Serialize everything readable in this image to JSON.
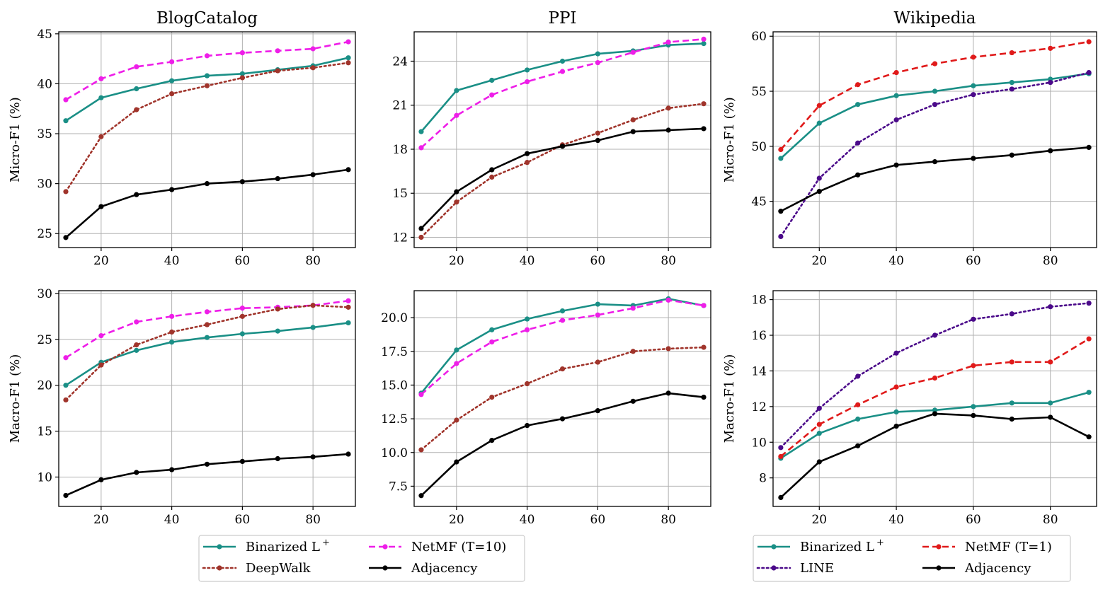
{
  "colors": {
    "binarized": "#1a8f86",
    "deepwalk": "#a0342b",
    "netmf10": "#ee1ee8",
    "netmf1": "#e01a1a",
    "line": "#4b0a8a",
    "adjacency": "#000000"
  },
  "legends": [
    {
      "panel": "left",
      "entries": [
        {
          "label_main": "Binarized L",
          "label_sup": "+",
          "color_key": "binarized",
          "dash": "solid"
        },
        {
          "label_main": "NetMF (T=10)",
          "label_sup": "",
          "color_key": "netmf10",
          "dash": "dashed"
        },
        {
          "label_main": "DeepWalk",
          "label_sup": "",
          "color_key": "deepwalk",
          "dash": "dotted"
        },
        {
          "label_main": "Adjacency",
          "label_sup": "",
          "color_key": "adjacency",
          "dash": "solid"
        }
      ]
    },
    {
      "panel": "right",
      "entries": [
        {
          "label_main": "Binarized L",
          "label_sup": "+",
          "color_key": "binarized",
          "dash": "solid"
        },
        {
          "label_main": "NetMF (T=1)",
          "label_sup": "",
          "color_key": "netmf1",
          "dash": "dashed"
        },
        {
          "label_main": "LINE",
          "label_sup": "",
          "color_key": "line",
          "dash": "dotted"
        },
        {
          "label_main": "Adjacency",
          "label_sup": "",
          "color_key": "adjacency",
          "dash": "solid"
        }
      ]
    }
  ],
  "chart_data": [
    {
      "type": "line",
      "title": "BlogCatalog",
      "xlabel": "",
      "ylabel": "Micro-F1 (%)",
      "xlim": [
        8,
        92
      ],
      "ylim": [
        23.6,
        45.2
      ],
      "xticks": [
        20,
        40,
        60,
        80
      ],
      "yticks": [
        25,
        30,
        35,
        40,
        45
      ],
      "x": [
        10,
        20,
        30,
        40,
        50,
        60,
        70,
        80,
        90
      ],
      "series": [
        {
          "name": "Binarized L+",
          "color_key": "binarized",
          "dash": "solid",
          "values": [
            36.3,
            38.6,
            39.5,
            40.3,
            40.8,
            41.0,
            41.4,
            41.8,
            42.6
          ]
        },
        {
          "name": "NetMF (T=10)",
          "color_key": "netmf10",
          "dash": "dashed",
          "values": [
            38.4,
            40.5,
            41.7,
            42.2,
            42.8,
            43.1,
            43.3,
            43.5,
            44.2
          ]
        },
        {
          "name": "DeepWalk",
          "color_key": "deepwalk",
          "dash": "dotted",
          "values": [
            29.2,
            34.7,
            37.4,
            39.0,
            39.8,
            40.6,
            41.3,
            41.6,
            42.1
          ]
        },
        {
          "name": "Adjacency",
          "color_key": "adjacency",
          "dash": "solid",
          "values": [
            24.6,
            27.7,
            28.9,
            29.4,
            30.0,
            30.2,
            30.5,
            30.9,
            31.4
          ]
        }
      ]
    },
    {
      "type": "line",
      "title": "PPI",
      "xlabel": "",
      "ylabel": "",
      "xlim": [
        8,
        92
      ],
      "ylim": [
        11.3,
        26.0
      ],
      "xticks": [
        20,
        40,
        60,
        80
      ],
      "yticks": [
        12,
        15,
        18,
        21,
        24
      ],
      "x": [
        10,
        20,
        30,
        40,
        50,
        60,
        70,
        80,
        90
      ],
      "series": [
        {
          "name": "Binarized L+",
          "color_key": "binarized",
          "dash": "solid",
          "values": [
            19.2,
            22.0,
            22.7,
            23.4,
            24.0,
            24.5,
            24.7,
            25.1,
            25.2
          ]
        },
        {
          "name": "NetMF (T=10)",
          "color_key": "netmf10",
          "dash": "dashed",
          "values": [
            18.1,
            20.3,
            21.7,
            22.6,
            23.3,
            23.9,
            24.6,
            25.3,
            25.5
          ]
        },
        {
          "name": "DeepWalk",
          "color_key": "deepwalk",
          "dash": "dotted",
          "values": [
            12.0,
            14.4,
            16.1,
            17.1,
            18.3,
            19.1,
            20.0,
            20.8,
            21.1
          ]
        },
        {
          "name": "Adjacency",
          "color_key": "adjacency",
          "dash": "solid",
          "values": [
            12.6,
            15.1,
            16.6,
            17.7,
            18.2,
            18.6,
            19.2,
            19.3,
            19.4
          ]
        }
      ]
    },
    {
      "type": "line",
      "title": "Wikipedia",
      "xlabel": "",
      "ylabel": "Micro-F1 (%)",
      "xlim": [
        8,
        92
      ],
      "ylim": [
        40.8,
        60.4
      ],
      "xticks": [
        20,
        40,
        60,
        80
      ],
      "yticks": [
        45,
        50,
        55,
        60
      ],
      "x": [
        10,
        20,
        30,
        40,
        50,
        60,
        70,
        80,
        90
      ],
      "series": [
        {
          "name": "Binarized L+",
          "color_key": "binarized",
          "dash": "solid",
          "values": [
            48.9,
            52.1,
            53.8,
            54.6,
            55.0,
            55.5,
            55.8,
            56.1,
            56.6
          ]
        },
        {
          "name": "NetMF (T=1)",
          "color_key": "netmf1",
          "dash": "dashed",
          "values": [
            49.7,
            53.7,
            55.6,
            56.7,
            57.5,
            58.1,
            58.5,
            58.9,
            59.5
          ]
        },
        {
          "name": "LINE",
          "color_key": "line",
          "dash": "dotted",
          "values": [
            41.8,
            47.1,
            50.3,
            52.4,
            53.8,
            54.7,
            55.2,
            55.8,
            56.7
          ]
        },
        {
          "name": "Adjacency",
          "color_key": "adjacency",
          "dash": "solid",
          "values": [
            44.1,
            45.9,
            47.4,
            48.3,
            48.6,
            48.9,
            49.2,
            49.6,
            49.9
          ]
        }
      ]
    },
    {
      "type": "line",
      "title": "",
      "xlabel": "",
      "ylabel": "Macro-F1 (%)",
      "xlim": [
        8,
        92
      ],
      "ylim": [
        6.8,
        30.3
      ],
      "xticks": [
        20,
        40,
        60,
        80
      ],
      "yticks": [
        10,
        15,
        20,
        25,
        30
      ],
      "x": [
        10,
        20,
        30,
        40,
        50,
        60,
        70,
        80,
        90
      ],
      "series": [
        {
          "name": "Binarized L+",
          "color_key": "binarized",
          "dash": "solid",
          "values": [
            20.0,
            22.5,
            23.8,
            24.7,
            25.2,
            25.6,
            25.9,
            26.3,
            26.8
          ]
        },
        {
          "name": "NetMF (T=10)",
          "color_key": "netmf10",
          "dash": "dashed",
          "values": [
            23.0,
            25.4,
            26.9,
            27.5,
            28.0,
            28.4,
            28.5,
            28.7,
            29.2
          ]
        },
        {
          "name": "DeepWalk",
          "color_key": "deepwalk",
          "dash": "dotted",
          "values": [
            18.4,
            22.2,
            24.4,
            25.8,
            26.6,
            27.5,
            28.3,
            28.7,
            28.5
          ]
        },
        {
          "name": "Adjacency",
          "color_key": "adjacency",
          "dash": "solid",
          "values": [
            8.0,
            9.7,
            10.5,
            10.8,
            11.4,
            11.7,
            12.0,
            12.2,
            12.5
          ]
        }
      ]
    },
    {
      "type": "line",
      "title": "",
      "xlabel": "",
      "ylabel": "",
      "xlim": [
        8,
        92
      ],
      "ylim": [
        6.0,
        22.0
      ],
      "xticks": [
        20,
        40,
        60,
        80
      ],
      "yticks": [
        7.5,
        10.0,
        12.5,
        15.0,
        17.5,
        20.0
      ],
      "yticks_labels": [
        "7.5",
        "10.0",
        "12.5",
        "15.0",
        "17.5",
        "20.0"
      ],
      "x": [
        10,
        20,
        30,
        40,
        50,
        60,
        70,
        80,
        90
      ],
      "series": [
        {
          "name": "Binarized L+",
          "color_key": "binarized",
          "dash": "solid",
          "values": [
            14.4,
            17.6,
            19.1,
            19.9,
            20.5,
            21.0,
            20.9,
            21.4,
            20.9
          ]
        },
        {
          "name": "NetMF (T=10)",
          "color_key": "netmf10",
          "dash": "dashed",
          "values": [
            14.3,
            16.6,
            18.2,
            19.1,
            19.8,
            20.2,
            20.7,
            21.3,
            20.9
          ]
        },
        {
          "name": "DeepWalk",
          "color_key": "deepwalk",
          "dash": "dotted",
          "values": [
            10.2,
            12.4,
            14.1,
            15.1,
            16.2,
            16.7,
            17.5,
            17.7,
            17.8
          ]
        },
        {
          "name": "Adjacency",
          "color_key": "adjacency",
          "dash": "solid",
          "values": [
            6.8,
            9.3,
            10.9,
            12.0,
            12.5,
            13.1,
            13.8,
            14.4,
            14.1
          ]
        }
      ]
    },
    {
      "type": "line",
      "title": "",
      "xlabel": "",
      "ylabel": "Macro-F1 (%)",
      "xlim": [
        8,
        92
      ],
      "ylim": [
        6.4,
        18.5
      ],
      "xticks": [
        20,
        40,
        60,
        80
      ],
      "yticks": [
        8,
        10,
        12,
        14,
        16,
        18
      ],
      "x": [
        10,
        20,
        30,
        40,
        50,
        60,
        70,
        80,
        90
      ],
      "series": [
        {
          "name": "Binarized L+",
          "color_key": "binarized",
          "dash": "solid",
          "values": [
            9.1,
            10.5,
            11.3,
            11.7,
            11.8,
            12.0,
            12.2,
            12.2,
            12.8
          ]
        },
        {
          "name": "NetMF (T=1)",
          "color_key": "netmf1",
          "dash": "dashed",
          "values": [
            9.2,
            11.0,
            12.1,
            13.1,
            13.6,
            14.3,
            14.5,
            14.5,
            15.8
          ]
        },
        {
          "name": "LINE",
          "color_key": "line",
          "dash": "dotted",
          "values": [
            9.7,
            11.9,
            13.7,
            15.0,
            16.0,
            16.9,
            17.2,
            17.6,
            17.8
          ]
        },
        {
          "name": "Adjacency",
          "color_key": "adjacency",
          "dash": "solid",
          "values": [
            6.9,
            8.9,
            9.8,
            10.9,
            11.6,
            11.5,
            11.3,
            11.4,
            10.3
          ]
        }
      ]
    }
  ]
}
